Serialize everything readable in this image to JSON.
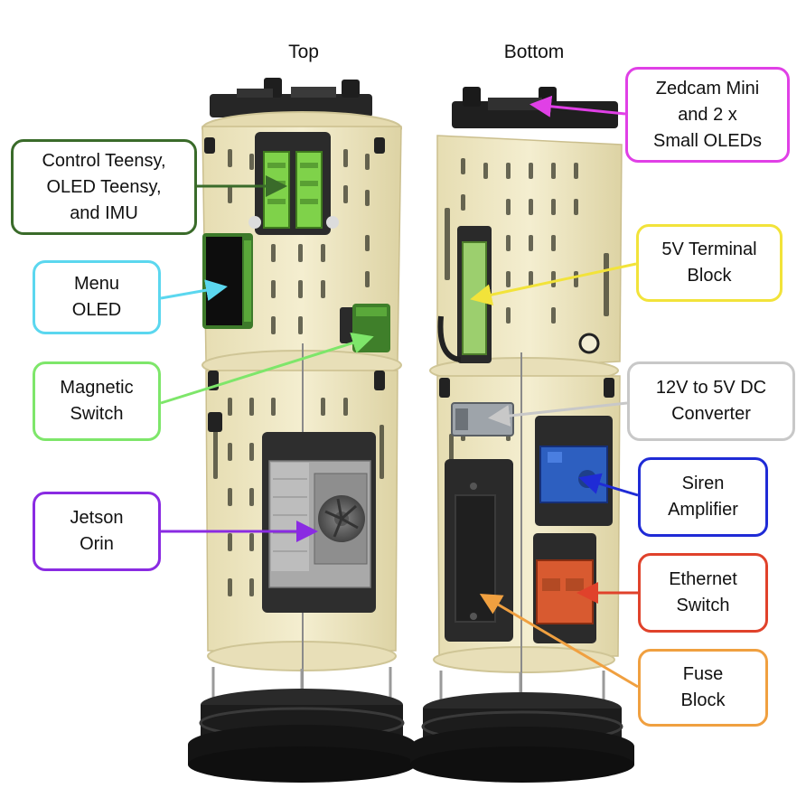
{
  "views": {
    "top": "Top",
    "bottom": "Bottom"
  },
  "labels": [
    {
      "id": "control-teensy",
      "text": "Control Teensy,\nOLED Teensy,\nand IMU",
      "color": "#3a6b2a"
    },
    {
      "id": "menu-oled",
      "text": "Menu\nOLED",
      "color": "#5bd7ef"
    },
    {
      "id": "magnetic-switch",
      "text": "Magnetic\nSwitch",
      "color": "#7ee66a"
    },
    {
      "id": "jetson-orin",
      "text": "Jetson\nOrin",
      "color": "#8a2be2"
    },
    {
      "id": "zedcam",
      "text": "Zedcam Mini\nand 2 x\nSmall OLEDs",
      "color": "#e040e6"
    },
    {
      "id": "terminal-block",
      "text": "5V Terminal\nBlock",
      "color": "#f2e33a"
    },
    {
      "id": "dc-converter",
      "text": "12V to 5V DC\nConverter",
      "color": "#c8c8c8"
    },
    {
      "id": "siren-amplifier",
      "text": "Siren\nAmplifier",
      "color": "#1f2bd6"
    },
    {
      "id": "ethernet-switch",
      "text": "Ethernet\nSwitch",
      "color": "#e0422b"
    },
    {
      "id": "fuse-block",
      "text": "Fuse\nBlock",
      "color": "#f0a040"
    }
  ],
  "colors": {
    "panel": "#efe8c4",
    "panel_edge": "#d8cfa0",
    "dark_part": "#2e2e2e",
    "base": "#1c1c1c",
    "teensy_green": "#7fd24a",
    "orin_gray": "#a9a9a9",
    "amp_blue": "#2d5fc0",
    "eth_red": "#d85a30"
  }
}
